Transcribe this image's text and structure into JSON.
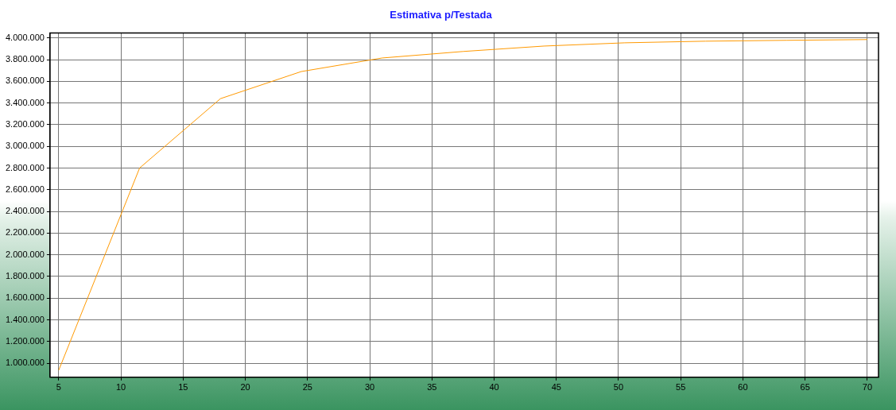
{
  "chart_data": {
    "type": "line",
    "title": "Estimativa p/Testada",
    "x": [
      5,
      11.5,
      18,
      24.5,
      31,
      37.5,
      44,
      50.5,
      57,
      63.5,
      70
    ],
    "series": [
      {
        "color": "#ff9900",
        "values": [
          935000,
          2800000,
          3440000,
          3690000,
          3815000,
          3875000,
          3925000,
          3955000,
          3970000,
          3978000,
          3985000
        ]
      }
    ],
    "xlim": [
      4.3,
      70.9
    ],
    "xticks": [
      5,
      10,
      15,
      20,
      25,
      30,
      35,
      40,
      45,
      50,
      55,
      60,
      65,
      70
    ],
    "ylim": [
      870000,
      4045000
    ],
    "yticks": [
      {
        "value": 1000000,
        "label": "1.000.000"
      },
      {
        "value": 1200000,
        "label": "1.200.000"
      },
      {
        "value": 1400000,
        "label": "1.400.000"
      },
      {
        "value": 1600000,
        "label": "1.600.000"
      },
      {
        "value": 1800000,
        "label": "1.800.000"
      },
      {
        "value": 2000000,
        "label": "2.000.000"
      },
      {
        "value": 2200000,
        "label": "2.200.000"
      },
      {
        "value": 2400000,
        "label": "2.400.000"
      },
      {
        "value": 2600000,
        "label": "2.600.000"
      },
      {
        "value": 2800000,
        "label": "2.800.000"
      },
      {
        "value": 3000000,
        "label": "3.000.000"
      },
      {
        "value": 3200000,
        "label": "3.200.000"
      },
      {
        "value": 3400000,
        "label": "3.400.000"
      },
      {
        "value": 3600000,
        "label": "3.600.000"
      },
      {
        "value": 3800000,
        "label": "3.800.000"
      },
      {
        "value": 4000000,
        "label": "4.000.000"
      }
    ],
    "grid": true,
    "marker": "none",
    "line_style": "solid"
  }
}
